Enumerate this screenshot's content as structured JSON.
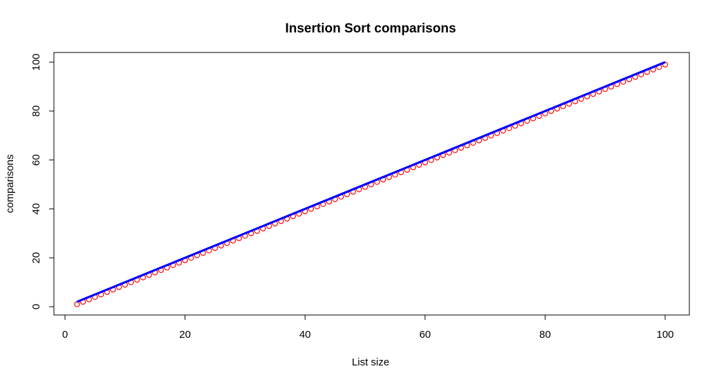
{
  "chart_data": {
    "type": "scatter",
    "title": "Insertion Sort comparisons",
    "xlabel": "List size",
    "ylabel": "comparisons",
    "xlim": [
      0,
      100
    ],
    "ylim": [
      0,
      100
    ],
    "x_ticks": [
      "0",
      "20",
      "40",
      "60",
      "80",
      "100"
    ],
    "y_ticks": [
      "0",
      "20",
      "40",
      "60",
      "80",
      "100"
    ],
    "grid": false,
    "legend": "none",
    "series": [
      {
        "kind": "points",
        "marker": "open-circle",
        "color": "#ff0000",
        "x": [
          2,
          3,
          4,
          5,
          6,
          7,
          8,
          9,
          10,
          11,
          12,
          13,
          14,
          15,
          16,
          17,
          18,
          19,
          20,
          21,
          22,
          23,
          24,
          25,
          26,
          27,
          28,
          29,
          30,
          31,
          32,
          33,
          34,
          35,
          36,
          37,
          38,
          39,
          40,
          41,
          42,
          43,
          44,
          45,
          46,
          47,
          48,
          49,
          50,
          51,
          52,
          53,
          54,
          55,
          56,
          57,
          58,
          59,
          60,
          61,
          62,
          63,
          64,
          65,
          66,
          67,
          68,
          69,
          70,
          71,
          72,
          73,
          74,
          75,
          76,
          77,
          78,
          79,
          80,
          81,
          82,
          83,
          84,
          85,
          86,
          87,
          88,
          89,
          90,
          91,
          92,
          93,
          94,
          95,
          96,
          97,
          98,
          99,
          100
        ],
        "y": [
          1,
          2,
          3,
          4,
          5,
          6,
          7,
          8,
          9,
          10,
          11,
          12,
          13,
          14,
          15,
          16,
          17,
          18,
          19,
          20,
          21,
          22,
          23,
          24,
          25,
          26,
          27,
          28,
          29,
          30,
          31,
          32,
          33,
          34,
          35,
          36,
          37,
          38,
          39,
          40,
          41,
          42,
          43,
          44,
          45,
          46,
          47,
          48,
          49,
          50,
          51,
          52,
          53,
          54,
          55,
          56,
          57,
          58,
          59,
          60,
          61,
          62,
          63,
          64,
          65,
          66,
          67,
          68,
          69,
          70,
          71,
          72,
          73,
          74,
          75,
          76,
          77,
          78,
          79,
          80,
          81,
          82,
          83,
          84,
          85,
          86,
          87,
          88,
          89,
          90,
          91,
          92,
          93,
          94,
          95,
          96,
          97,
          98,
          99
        ]
      },
      {
        "kind": "line",
        "color": "#0000ff",
        "x": [
          2,
          100
        ],
        "y": [
          2,
          100
        ]
      }
    ]
  }
}
